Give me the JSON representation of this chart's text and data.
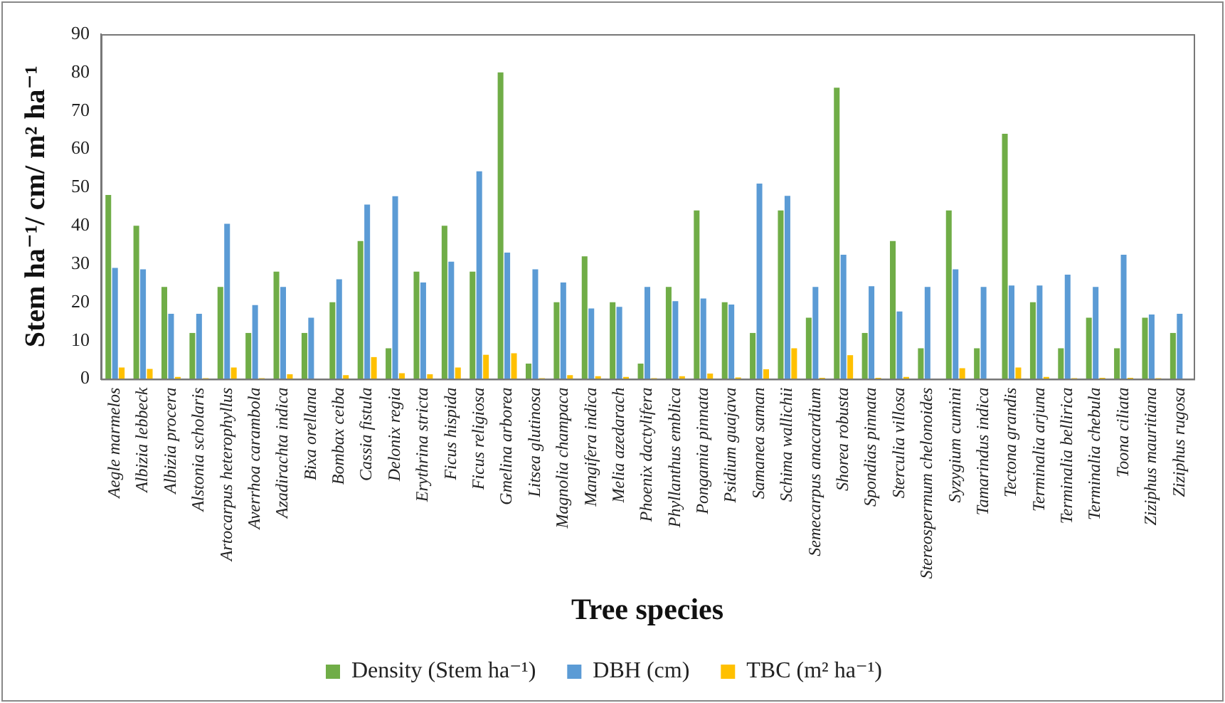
{
  "chart_data": {
    "type": "bar",
    "xlabel": "Tree species",
    "ylabel": "Stem ha⁻¹/ cm/ m² ha⁻¹",
    "categories": [
      "Aegle marmelos",
      "Albizia lebbeck",
      "Albizia procera",
      "Alstonia scholaris",
      "Artocarpus heterophyllus",
      "Averrhoa carambola",
      "Azadirachta indica",
      "Bixa orellana",
      "Bombax ceiba",
      "Cassia fistula",
      "Delonix regia",
      "Erythrina stricta",
      "Ficus hispida",
      "Ficus religiosa",
      "Gmelina arborea",
      "Litsea glutinosa",
      "Magnolia champaca",
      "Mangifera indica",
      "Melia azedarach",
      "Phoenix dactylifera",
      "Phyllanthus emblica",
      "Pongamia pinnata",
      "Psidium guajava",
      "Samanea saman",
      "Schima wallichii",
      "Semecarpus anacardium",
      "Shorea robusta",
      "Spondias pinnata",
      "Sterculia villosa",
      "Stereospermum chelonoides",
      "Syzygium cumini",
      "Tamarindus indica",
      "Tectona grandis",
      "Terminalia arjuna",
      "Terminalia bellirica",
      "Terminalia chebula",
      "Toona ciliata",
      "Ziziphus mauritiana",
      "Ziziphus rugosa"
    ],
    "series": [
      {
        "name": "Density (Stem ha⁻¹)",
        "color": "#70ad47",
        "values": [
          48,
          40,
          24,
          12,
          24,
          12,
          28,
          12,
          20,
          36,
          8,
          28,
          40,
          28,
          80,
          4,
          20,
          32,
          20,
          4,
          24,
          44,
          20,
          12,
          44,
          16,
          76,
          12,
          36,
          8,
          44,
          8,
          64,
          20,
          8,
          16,
          8,
          16,
          12
        ]
      },
      {
        "name": "DBH (cm)",
        "color": "#5b9bd5",
        "values": [
          29,
          28.6,
          17,
          17,
          40.5,
          19.3,
          24,
          16,
          26,
          45.5,
          47.7,
          25.2,
          30.6,
          54.2,
          33,
          28.6,
          25.2,
          18.4,
          18.8,
          24,
          20.3,
          21,
          19.4,
          51,
          47.8,
          24,
          32.4,
          24.2,
          17.6,
          24,
          28.6,
          24,
          24.4,
          24.4,
          27.2,
          24,
          32.4,
          16.8,
          17
        ]
      },
      {
        "name": "TBC (m² ha⁻¹)",
        "color": "#ffc000",
        "values": [
          3,
          2.6,
          0.5,
          0.2,
          3,
          0.2,
          1.2,
          null,
          1,
          5.7,
          1.5,
          1.2,
          3,
          6.3,
          6.7,
          0.2,
          1,
          0.7,
          0.5,
          0.2,
          0.7,
          1.4,
          0.4,
          2.5,
          8,
          0.3,
          6.2,
          0.3,
          0.5,
          null,
          2.8,
          null,
          3,
          0.5,
          0.2,
          0.3,
          0.3,
          0.2,
          null
        ]
      }
    ],
    "ylim": [
      0,
      90
    ],
    "yticks": [
      0,
      10,
      20,
      30,
      40,
      50,
      60,
      70,
      80,
      90
    ],
    "grid": false,
    "legend": "bottom"
  }
}
